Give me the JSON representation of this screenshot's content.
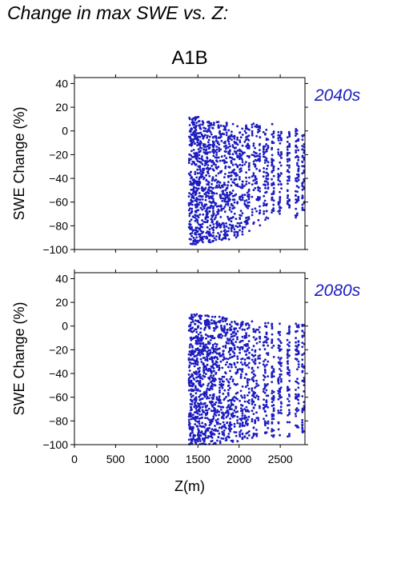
{
  "title": "Change in max SWE vs. Z:",
  "colors": {
    "points": "#1c1cc0",
    "label": "#1c1cc0"
  },
  "chart_data": {
    "type": "scatter",
    "scenario": "A1B",
    "xlabel": "Z(m)",
    "ylabel": "SWE Change (%)",
    "xlim": [
      0,
      2800
    ],
    "ylim": [
      -100,
      45
    ],
    "xticks": [
      0,
      500,
      1000,
      1500,
      2000,
      2500
    ],
    "yticks": [
      -100,
      -80,
      -60,
      -40,
      -20,
      0,
      20,
      40
    ],
    "panels": [
      {
        "label": "2040s",
        "x_range": [
          1380,
          2800
        ],
        "columns": [
          {
            "x": [
              1390,
              1520
            ],
            "y": [
              -96,
              12
            ],
            "dense": 1.0
          },
          {
            "x": [
              1520,
              1700
            ],
            "y": [
              -94,
              11
            ],
            "dense": 0.85
          },
          {
            "x": [
              1700,
              1880
            ],
            "y": [
              -92,
              8
            ],
            "dense": 0.6
          },
          {
            "x": [
              1880,
              1990
            ],
            "y": [
              -90,
              6
            ],
            "dense": 0.45
          },
          {
            "x": [
              2000,
              2050
            ],
            "y": [
              -88,
              3
            ],
            "dense": 0.3
          },
          {
            "x": [
              2060,
              2130
            ],
            "y": [
              -85,
              5
            ],
            "dense": 0.35
          },
          {
            "x": [
              2150,
              2260
            ],
            "y": [
              -80,
              7
            ],
            "dense": 0.3
          },
          {
            "x": [
              2290,
              2360
            ],
            "y": [
              -75,
              3
            ],
            "dense": 0.3
          },
          {
            "x": [
              2390,
              2430
            ],
            "y": [
              -70,
              6
            ],
            "dense": 0.25
          },
          {
            "x": [
              2470,
              2520
            ],
            "y": [
              -70,
              2
            ],
            "dense": 0.25
          },
          {
            "x": [
              2580,
              2620
            ],
            "y": [
              -70,
              0
            ],
            "dense": 0.25
          },
          {
            "x": [
              2680,
              2730
            ],
            "y": [
              -75,
              2
            ],
            "dense": 0.25
          },
          {
            "x": [
              2760,
              2800
            ],
            "y": [
              -70,
              0
            ],
            "dense": 0.2
          }
        ]
      },
      {
        "label": "2080s",
        "x_range": [
          1380,
          2800
        ],
        "columns": [
          {
            "x": [
              1390,
              1520
            ],
            "y": [
              -100,
              10
            ],
            "dense": 1.0
          },
          {
            "x": [
              1520,
              1700
            ],
            "y": [
              -100,
              9
            ],
            "dense": 0.85
          },
          {
            "x": [
              1700,
              1880
            ],
            "y": [
              -99,
              8
            ],
            "dense": 0.6
          },
          {
            "x": [
              1880,
              1990
            ],
            "y": [
              -98,
              5
            ],
            "dense": 0.45
          },
          {
            "x": [
              2000,
              2050
            ],
            "y": [
              -96,
              4
            ],
            "dense": 0.3
          },
          {
            "x": [
              2060,
              2130
            ],
            "y": [
              -96,
              3
            ],
            "dense": 0.35
          },
          {
            "x": [
              2150,
              2260
            ],
            "y": [
              -95,
              5
            ],
            "dense": 0.3
          },
          {
            "x": [
              2290,
              2360
            ],
            "y": [
              -95,
              4
            ],
            "dense": 0.3
          },
          {
            "x": [
              2390,
              2430
            ],
            "y": [
              -95,
              3
            ],
            "dense": 0.25
          },
          {
            "x": [
              2470,
              2520
            ],
            "y": [
              -93,
              2
            ],
            "dense": 0.25
          },
          {
            "x": [
              2580,
              2620
            ],
            "y": [
              -95,
              0
            ],
            "dense": 0.25
          },
          {
            "x": [
              2680,
              2730
            ],
            "y": [
              -90,
              3
            ],
            "dense": 0.25
          },
          {
            "x": [
              2760,
              2800
            ],
            "y": [
              -90,
              3
            ],
            "dense": 0.2
          }
        ]
      }
    ]
  }
}
